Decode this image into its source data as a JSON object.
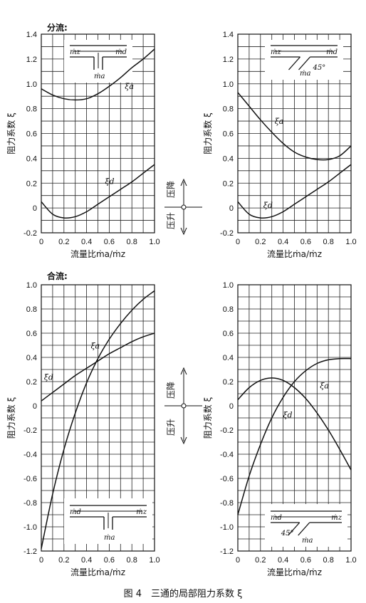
{
  "figure": {
    "caption": "图 4　三通的局部阻力系数 ξ",
    "section_split": "分流:",
    "section_merge": "合流:",
    "indicator_up": "压降",
    "indicator_down": "压升"
  },
  "chart_data": [
    {
      "id": "split-straight",
      "type": "line",
      "xlabel": "流量比ṁa/ṁz",
      "ylabel": "阻力系数 ξ",
      "xlim": [
        0,
        1.0
      ],
      "ylim": [
        -0.2,
        1.4
      ],
      "xticks": [
        "0",
        "0.2",
        "0.4",
        "0.6",
        "0.8",
        "1.0"
      ],
      "yticks": [
        "-0.2",
        "0",
        "0.2",
        "0.4",
        "0.6",
        "0.8",
        "1.0",
        "1.2",
        "1.4"
      ],
      "grid": true,
      "inset": {
        "in": "ṁz",
        "out": "ṁd",
        "branch": "ṁa",
        "angle": ""
      },
      "series": [
        {
          "name": "ξa",
          "x": [
            0,
            0.1,
            0.2,
            0.3,
            0.4,
            0.5,
            0.6,
            0.7,
            0.8,
            0.9,
            1.0
          ],
          "y": [
            0.96,
            0.91,
            0.88,
            0.87,
            0.88,
            0.92,
            0.98,
            1.05,
            1.13,
            1.2,
            1.28
          ]
        },
        {
          "name": "ξd",
          "x": [
            0,
            0.1,
            0.2,
            0.3,
            0.4,
            0.5,
            0.6,
            0.7,
            0.8,
            0.9,
            1.0
          ],
          "y": [
            0.05,
            -0.05,
            -0.08,
            -0.07,
            -0.03,
            0.03,
            0.09,
            0.15,
            0.21,
            0.28,
            0.35
          ]
        }
      ]
    },
    {
      "id": "split-45",
      "type": "line",
      "xlabel": "流量比ṁa/ṁz",
      "ylabel": "阻力系数 ξ",
      "xlim": [
        0,
        1.0
      ],
      "ylim": [
        -0.2,
        1.4
      ],
      "xticks": [
        "0",
        "0.2",
        "0.4",
        "0.6",
        "0.8",
        "1.0"
      ],
      "yticks": [
        "-0.2",
        "0",
        "0.2",
        "0.4",
        "0.6",
        "0.8",
        "1.0",
        "1.2",
        "1.4"
      ],
      "grid": true,
      "inset": {
        "in": "ṁz",
        "out": "ṁd",
        "branch": "ṁa",
        "angle": "45°"
      },
      "series": [
        {
          "name": "ξa",
          "x": [
            0,
            0.1,
            0.2,
            0.3,
            0.4,
            0.5,
            0.6,
            0.7,
            0.8,
            0.9,
            1.0
          ],
          "y": [
            0.93,
            0.82,
            0.71,
            0.61,
            0.52,
            0.45,
            0.41,
            0.39,
            0.39,
            0.42,
            0.5
          ]
        },
        {
          "name": "ξd",
          "x": [
            0,
            0.1,
            0.2,
            0.3,
            0.4,
            0.5,
            0.6,
            0.7,
            0.8,
            0.9,
            1.0
          ],
          "y": [
            0.05,
            -0.05,
            -0.08,
            -0.07,
            -0.03,
            0.03,
            0.09,
            0.15,
            0.21,
            0.28,
            0.35
          ]
        }
      ]
    },
    {
      "id": "merge-straight",
      "type": "line",
      "xlabel": "流量比ṁa/ṁz",
      "ylabel": "阻力系数 ξ",
      "xlim": [
        0,
        1.0
      ],
      "ylim": [
        -1.2,
        1.0
      ],
      "xticks": [
        "0",
        "0.2",
        "0.4",
        "0.6",
        "0.8",
        "1.0"
      ],
      "yticks": [
        "-1.2",
        "-1.0",
        "-0.8",
        "-0.6",
        "-0.4",
        "-0.2",
        "0",
        "0.2",
        "0.4",
        "0.6",
        "0.8",
        "1.0"
      ],
      "grid": true,
      "inset": {
        "in": "ṁd",
        "out": "ṁz",
        "branch": "ṁa",
        "angle": ""
      },
      "series": [
        {
          "name": "ξd",
          "x": [
            0,
            0.1,
            0.2,
            0.3,
            0.4,
            0.5,
            0.6,
            0.7,
            0.8,
            0.9,
            1.0
          ],
          "y": [
            0.04,
            0.11,
            0.18,
            0.25,
            0.31,
            0.37,
            0.43,
            0.48,
            0.53,
            0.57,
            0.6
          ]
        },
        {
          "name": "ξa",
          "x": [
            0,
            0.1,
            0.2,
            0.3,
            0.4,
            0.5,
            0.6,
            0.7,
            0.8,
            0.9,
            1.0
          ],
          "y": [
            -1.18,
            -0.73,
            -0.36,
            -0.06,
            0.19,
            0.39,
            0.55,
            0.68,
            0.79,
            0.88,
            0.95
          ]
        }
      ]
    },
    {
      "id": "merge-45",
      "type": "line",
      "xlabel": "流量比ṁa/ṁz",
      "ylabel": "阻力系数 ξ",
      "xlim": [
        0,
        1.0
      ],
      "ylim": [
        -1.2,
        1.0
      ],
      "xticks": [
        "0",
        "0.2",
        "0.4",
        "0.6",
        "0.8",
        "1.0"
      ],
      "yticks": [
        "-1.2",
        "-1.0",
        "-0.8",
        "-0.6",
        "-0.4",
        "-0.2",
        "0",
        "0.2",
        "0.4",
        "0.6",
        "0.8",
        "1.0"
      ],
      "grid": true,
      "inset": {
        "in": "ṁd",
        "out": "ṁz",
        "branch": "ṁa",
        "angle": "45°"
      },
      "series": [
        {
          "name": "ξd",
          "x": [
            0,
            0.1,
            0.2,
            0.3,
            0.4,
            0.5,
            0.6,
            0.7,
            0.8,
            0.9,
            1.0
          ],
          "y": [
            0.05,
            0.15,
            0.21,
            0.23,
            0.21,
            0.15,
            0.06,
            -0.06,
            -0.2,
            -0.36,
            -0.53
          ]
        },
        {
          "name": "ξa",
          "x": [
            0,
            0.1,
            0.2,
            0.3,
            0.4,
            0.5,
            0.6,
            0.7,
            0.8,
            0.9,
            1.0
          ],
          "y": [
            -0.9,
            -0.58,
            -0.32,
            -0.1,
            0.07,
            0.2,
            0.29,
            0.35,
            0.38,
            0.39,
            0.39
          ]
        }
      ]
    }
  ]
}
